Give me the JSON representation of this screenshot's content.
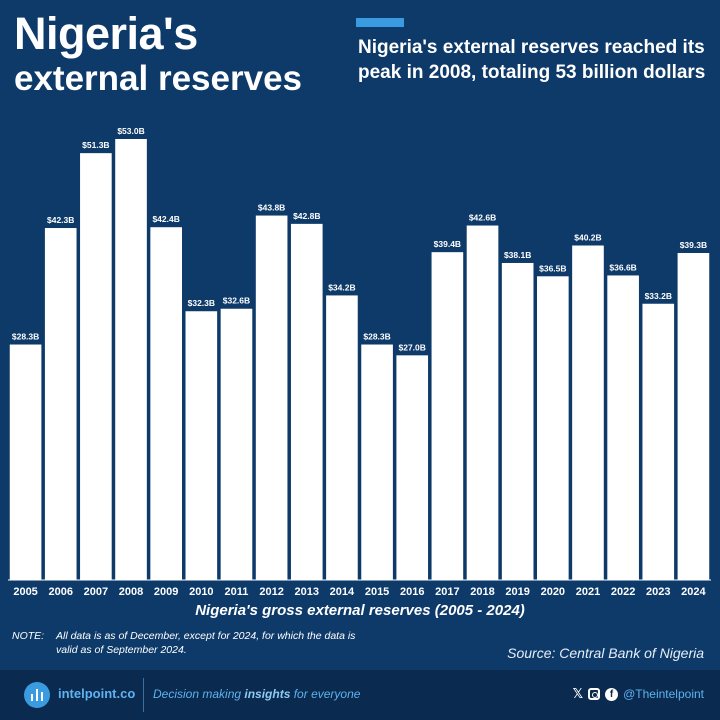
{
  "header": {
    "title_line1": "Nigeria's",
    "title_line2": "external reserves",
    "headline": "Nigeria's external reserves reached its peak in 2008, totaling 53 billion dollars",
    "accent_color": "#3b9be0"
  },
  "chart_data": {
    "type": "bar",
    "title": "Nigeria's gross external reserves (2005 - 2024)",
    "categories": [
      "2005",
      "2006",
      "2007",
      "2008",
      "2009",
      "2010",
      "2011",
      "2012",
      "2013",
      "2014",
      "2015",
      "2016",
      "2017",
      "2018",
      "2019",
      "2020",
      "2021",
      "2022",
      "2023",
      "2024"
    ],
    "values": [
      28.3,
      42.3,
      51.3,
      53.0,
      42.4,
      32.3,
      32.6,
      43.8,
      42.8,
      34.2,
      28.3,
      27.0,
      39.4,
      42.6,
      38.1,
      36.5,
      40.2,
      36.6,
      33.2,
      39.3
    ],
    "data_labels": [
      "$28.3B",
      "$42.3B",
      "$51.3B",
      "$53.0B",
      "$42.4B",
      "$32.3B",
      "$32.6B",
      "$43.8B",
      "$42.8B",
      "$34.2B",
      "$28.3B",
      "$27.0B",
      "$39.4B",
      "$42.6B",
      "$38.1B",
      "$36.5B",
      "$40.2B",
      "$36.6B",
      "$33.2B",
      "$39.3B"
    ],
    "units": "billion USD",
    "ylim": [
      0,
      53
    ],
    "grid": false,
    "bar_color": "#ffffff",
    "background_color": "#0e3a6a"
  },
  "note": {
    "label": "NOTE:",
    "text": "All data is as of December, except for 2024, for which the data is valid as of September 2024."
  },
  "source": "Source: Central Bank of Nigeria",
  "footer": {
    "brand": "intelpoint.co",
    "tagline_before": "Decision making ",
    "tagline_bold": "insights",
    "tagline_after": " for everyone",
    "x_icon_glyph": "𝕏",
    "facebook_glyph": "f",
    "handle": "@Theintelpoint",
    "icons": [
      "x-icon",
      "instagram-icon",
      "facebook-icon"
    ]
  }
}
